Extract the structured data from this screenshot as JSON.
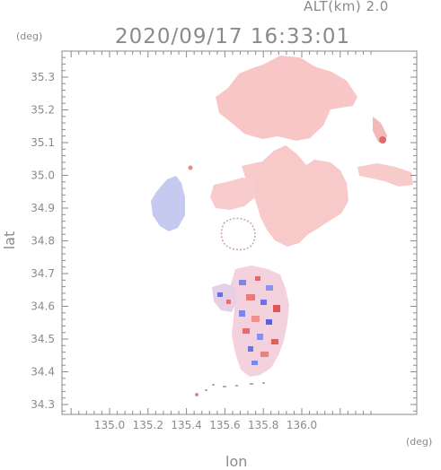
{
  "header": {
    "altitude_label": "ALT(km) 2.0",
    "timestamp": "2020/09/17 16:33:01"
  },
  "axes": {
    "x_title": "lon",
    "y_title": "lat",
    "x_unit": "(deg)",
    "y_unit": "(deg)",
    "x_ticks": [
      "135.0",
      "135.2",
      "135.4",
      "135.6",
      "135.8",
      "136.0"
    ],
    "y_ticks": [
      "35.3",
      "35.2",
      "35.1",
      "35.0",
      "34.9",
      "34.8",
      "34.7",
      "34.6",
      "34.5",
      "34.4",
      "34.3"
    ]
  },
  "colors": {
    "axis": "#8a8a8a",
    "positive_field": "#f7c3c3",
    "positive_strong": "#e05a5a",
    "negative_field": "#c6c9f2",
    "negative_strong": "#4a55e0"
  }
}
